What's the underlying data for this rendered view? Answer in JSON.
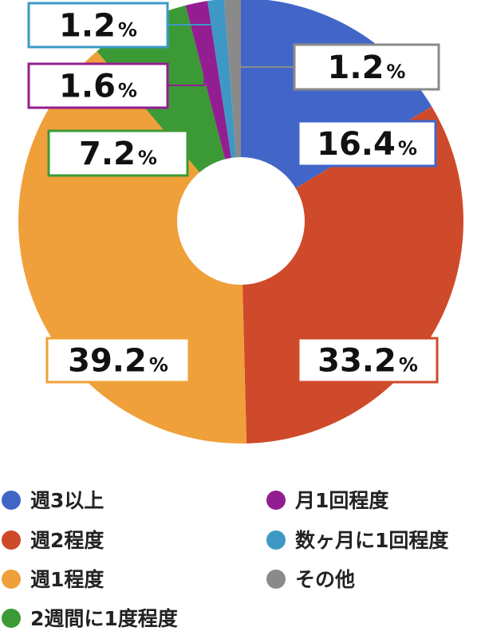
{
  "chart_data": {
    "type": "pie",
    "donut": true,
    "unit_suffix": "%",
    "categories": [
      "週3以上",
      "週2程度",
      "週1程度",
      "2週間に1度程度",
      "月1回程度",
      "数ヶ月に1回程度",
      "その他"
    ],
    "values": [
      16.4,
      33.2,
      39.2,
      7.2,
      1.6,
      1.2,
      1.2
    ],
    "labels": [
      "16.4",
      "33.2",
      "39.2",
      "7.2",
      "1.6",
      "1.2",
      "1.2"
    ],
    "colors": [
      "#4166c8",
      "#cf4a2a",
      "#f0a03a",
      "#3b9a35",
      "#931e91",
      "#3e98c6",
      "#8a8a8a"
    ],
    "start_angle_deg": 0,
    "direction": "clockwise",
    "legend_position": "bottom"
  }
}
